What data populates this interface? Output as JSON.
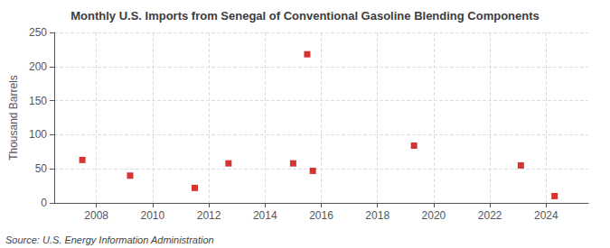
{
  "chart_data": {
    "type": "scatter",
    "title": "Monthly U.S. Imports from Senegal of Conventional Gasoline Blending Components",
    "ylabel": "Thousand Barrels",
    "annotation": "Source: U.S. Energy Information Administration",
    "x": [
      2007.5,
      2009.2,
      2011.5,
      2012.7,
      2015.0,
      2015.5,
      2015.7,
      2019.3,
      2023.1,
      2024.3
    ],
    "values": [
      63,
      40,
      22,
      58,
      58,
      218,
      47,
      84,
      55,
      10
    ],
    "color": "#cc0000",
    "marker": "square",
    "xlim": [
      2006.5,
      2025.5
    ],
    "xticks": [
      2008,
      2010,
      2012,
      2014,
      2016,
      2018,
      2020,
      2022,
      2024
    ],
    "ylim": [
      0,
      250
    ],
    "yticks": [
      0,
      50,
      100,
      150,
      200,
      250
    ],
    "grid": true
  }
}
